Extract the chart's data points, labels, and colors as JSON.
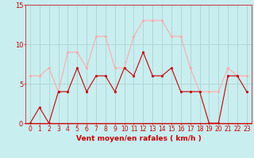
{
  "x": [
    0,
    1,
    2,
    3,
    4,
    5,
    6,
    7,
    8,
    9,
    10,
    11,
    12,
    13,
    14,
    15,
    16,
    17,
    18,
    19,
    20,
    21,
    22,
    23
  ],
  "wind_avg": [
    0,
    2,
    0,
    4,
    4,
    7,
    4,
    6,
    6,
    4,
    7,
    6,
    9,
    6,
    6,
    7,
    4,
    4,
    4,
    0,
    0,
    6,
    6,
    4
  ],
  "wind_gust": [
    6,
    6,
    7,
    4,
    9,
    9,
    7,
    11,
    11,
    7,
    7,
    11,
    13,
    13,
    13,
    11,
    11,
    7,
    4,
    4,
    4,
    7,
    6,
    6
  ],
  "avg_color": "#cc0000",
  "gust_color": "#ffaaaa",
  "bg_color": "#c8eef0",
  "grid_color": "#aacccc",
  "xlabel": "Vent moyen/en rafales ( km/h )",
  "xlabel_color": "#cc0000",
  "tick_color": "#cc0000",
  "ylim": [
    0,
    15
  ],
  "xlim_min": -0.5,
  "xlim_max": 23.5,
  "yticks": [
    0,
    5,
    10,
    15
  ],
  "xlabel_fontsize": 6.5,
  "tick_fontsize": 5.5
}
